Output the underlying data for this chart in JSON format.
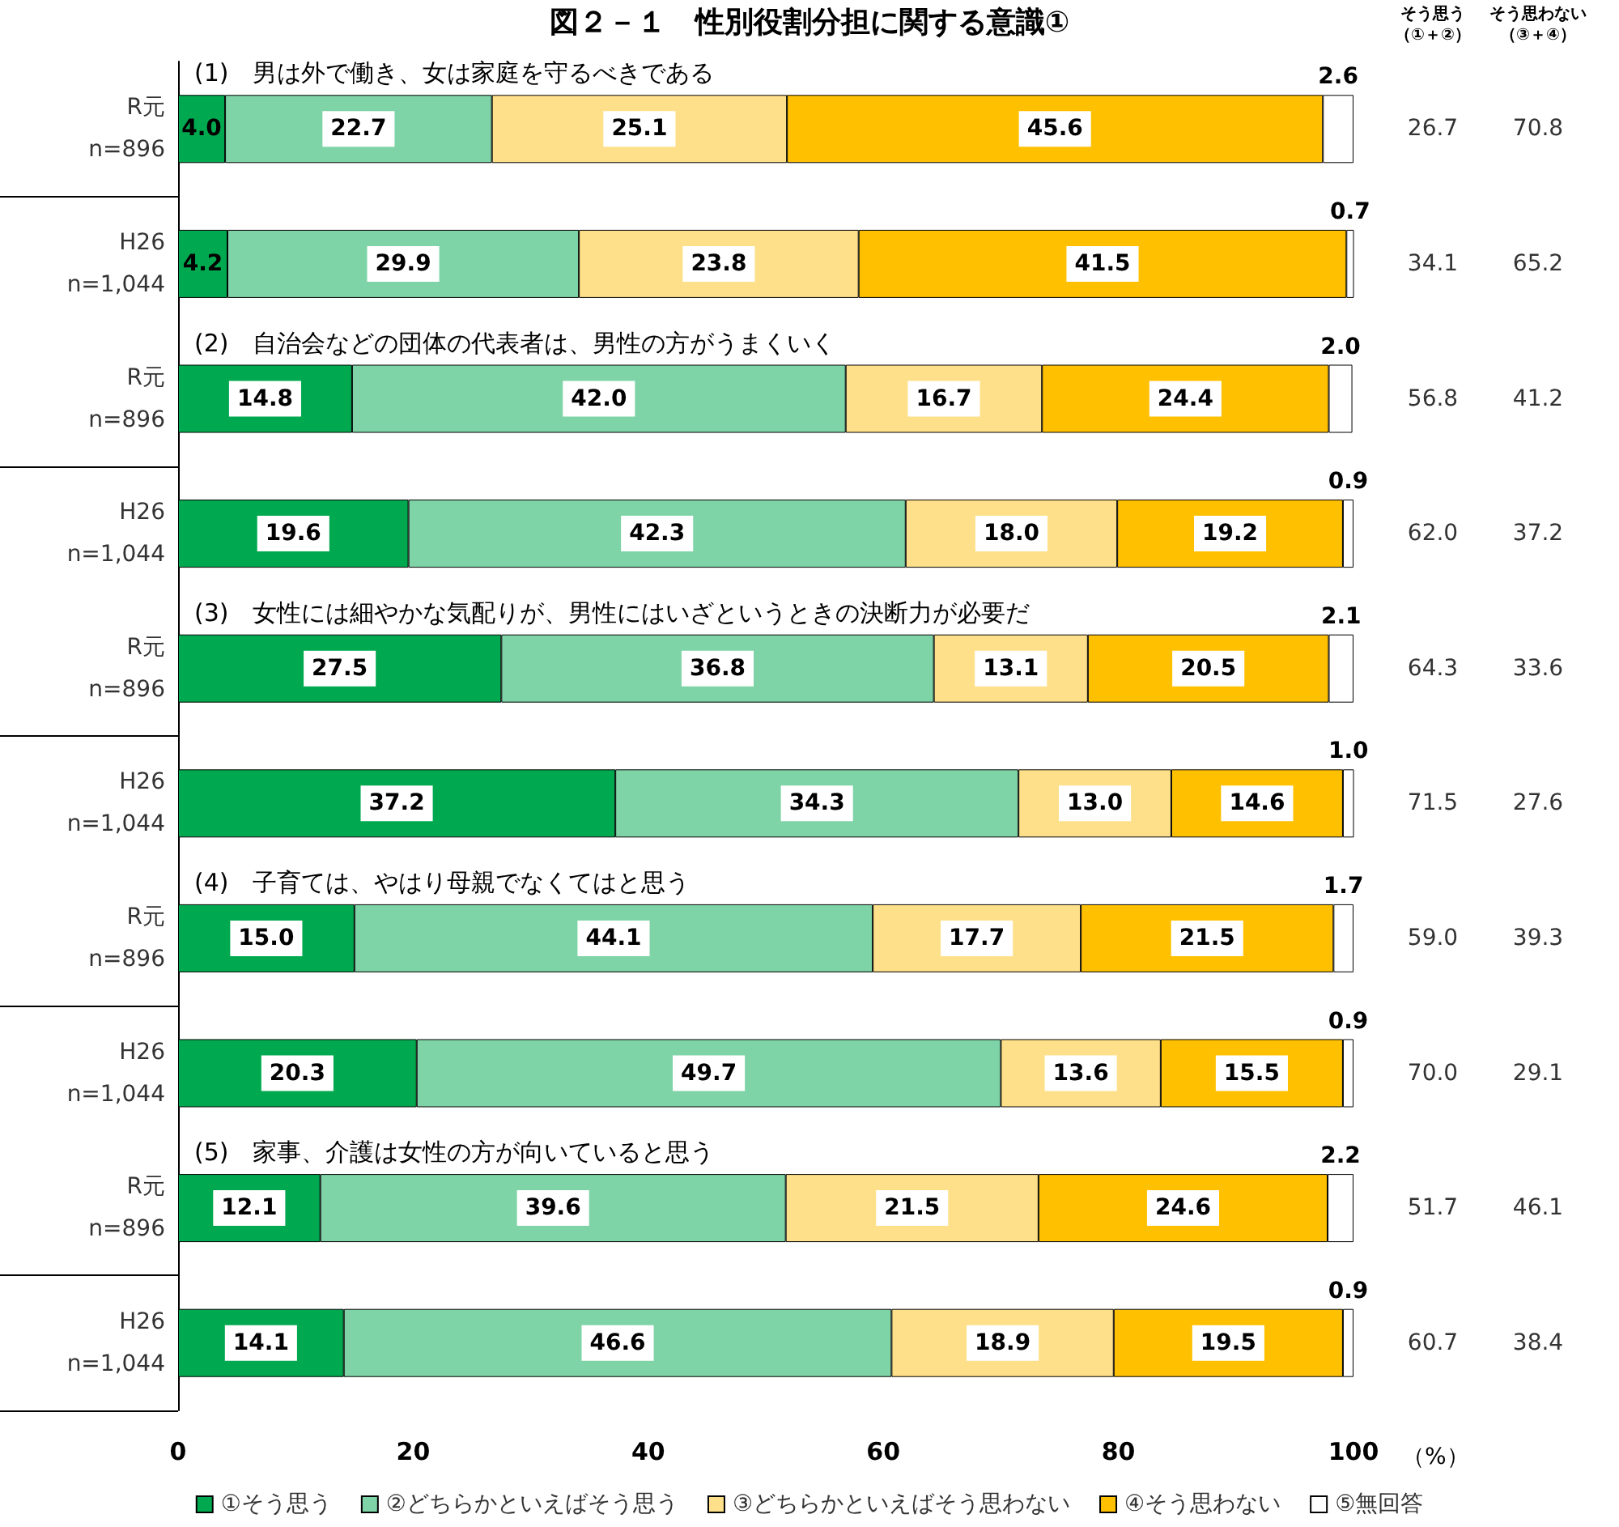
{
  "chart_data": {
    "type": "bar",
    "orientation": "horizontal",
    "stacked": true,
    "title": "図２－１　性別役割分担に関する意識①",
    "xlabel": "（%）",
    "categories": [
      "R元\nn=896",
      "H26\nn=1,044",
      "R元\nn=896",
      "H26\nn=1,044",
      "R元\nn=896",
      "H26\nn=1,044",
      "R元\nn=896",
      "H26\nn=1,044",
      "R元\nn=896",
      "H26\nn=1,044"
    ],
    "series": [
      {
        "name": "①そう思う",
        "color": "#00a94f",
        "values": [
          4.0,
          4.2,
          14.8,
          19.6,
          27.5,
          37.2,
          15.0,
          20.3,
          12.1,
          14.1
        ],
        "value_labels": [
          "4.0",
          "4.2",
          "14.8",
          "19.6",
          "27.5",
          "37.2",
          "15.0",
          "20.3",
          "12.1",
          "14.1"
        ]
      },
      {
        "name": "②どちらかといえばそう思う",
        "color": "#7fd4a7",
        "values": [
          22.7,
          29.9,
          42.0,
          42.3,
          36.8,
          34.3,
          44.1,
          49.7,
          39.6,
          46.6
        ],
        "value_labels": [
          "22.7",
          "29.9",
          "42.0",
          "42.3",
          "36.8",
          "34.3",
          "44.1",
          "49.7",
          "39.6",
          "46.6"
        ]
      },
      {
        "name": "③どちらかといえばそう思わない",
        "color": "#ffe08a",
        "values": [
          25.1,
          23.8,
          16.7,
          18.0,
          13.1,
          13.0,
          17.7,
          13.6,
          21.5,
          18.9
        ],
        "value_labels": [
          "25.1",
          "23.8",
          "16.7",
          "18.0",
          "13.1",
          "13.0",
          "17.7",
          "13.6",
          "21.5",
          "18.9"
        ]
      },
      {
        "name": "④そう思わない",
        "color": "#ffc000",
        "values": [
          45.6,
          41.5,
          24.4,
          19.2,
          20.5,
          14.6,
          21.5,
          15.5,
          24.6,
          19.5
        ],
        "value_labels": [
          "45.6",
          "41.5",
          "24.4",
          "19.2",
          "20.5",
          "14.6",
          "21.5",
          "15.5",
          "24.6",
          "19.5"
        ]
      },
      {
        "name": "⑤無回答",
        "color": "#ffffff",
        "values": [
          2.6,
          0.7,
          2.0,
          0.9,
          2.1,
          1.0,
          1.7,
          0.9,
          2.2,
          0.9
        ],
        "value_labels": [
          "2.6",
          "0.7",
          "2.0",
          "0.9",
          "2.1",
          "1.0",
          "1.7",
          "0.9",
          "2.2",
          "0.9"
        ]
      }
    ],
    "xlim": [
      0,
      100
    ],
    "xticks": [
      0,
      20,
      40,
      60,
      80,
      100
    ],
    "grid": false,
    "legend": "bottom",
    "annotations": [
      "(1)　男は外で働き、女は家庭を守るべきである",
      "(2)　自治会などの団体の代表者は、男性の方がうまくいく",
      "(3)　女性には細やかな気配りが、男性にはいざというときの決断力が必要だ",
      "(4)　子育ては、やはり母親でなくてはと思う",
      "(5)　家事、介護は女性の方が向いていると思う",
      "そう思う",
      "（①＋②）",
      "そう思わない",
      "（③＋④）",
      "26.7",
      "70.8",
      "34.1",
      "65.2",
      "56.8",
      "41.2",
      "62.0",
      "37.2",
      "64.3",
      "33.6",
      "71.5",
      "27.6",
      "59.0",
      "39.3",
      "70.0",
      "29.1",
      "51.7",
      "46.1",
      "60.7",
      "38.4"
    ]
  }
}
